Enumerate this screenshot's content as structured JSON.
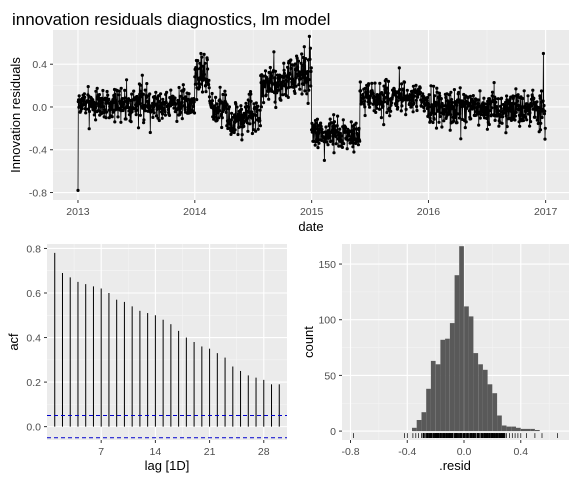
{
  "title": "innovation residuals diagnostics, lm model",
  "colors": {
    "panel_background": "#ebebeb",
    "grid_major": "#ffffff",
    "grid_minor": "#f5f5f5",
    "line_points": "#000000",
    "bars": "#595959",
    "ci_lines": "#0000cc"
  },
  "chart_data": [
    {
      "type": "line",
      "id": "residuals_time",
      "markers": true,
      "xlabel": "date",
      "ylabel": "Innovation residuals",
      "xlim": [
        "2012-10-15",
        "2017-03-15"
      ],
      "ylim": [
        -0.87,
        0.72
      ],
      "x_ticks": [
        "2013",
        "2014",
        "2015",
        "2016",
        "2017"
      ],
      "y_ticks": [
        -0.8,
        -0.4,
        0.0,
        0.4
      ],
      "y_tick_labels": [
        "-0.8",
        "-0.4",
        "0.0",
        "0.4"
      ],
      "grid": true,
      "segments": [
        {
          "start": "2013-01-01",
          "end": "2013-12-31",
          "level": 0.03,
          "noise": 0.07
        },
        {
          "start": "2014-01-01",
          "end": "2014-02-15",
          "level": 0.3,
          "noise": 0.09
        },
        {
          "start": "2014-02-16",
          "end": "2014-04-10",
          "level": 0.02,
          "noise": 0.08
        },
        {
          "start": "2014-04-11",
          "end": "2014-06-15",
          "level": -0.12,
          "noise": 0.08
        },
        {
          "start": "2014-06-16",
          "end": "2014-07-25",
          "level": -0.05,
          "noise": 0.1
        },
        {
          "start": "2014-07-26",
          "end": "2014-10-15",
          "level": 0.22,
          "noise": 0.08
        },
        {
          "start": "2014-10-16",
          "end": "2014-12-31",
          "level": 0.3,
          "noise": 0.1
        },
        {
          "start": "2015-01-01",
          "end": "2015-05-31",
          "level": -0.25,
          "noise": 0.08
        },
        {
          "start": "2015-06-01",
          "end": "2015-12-31",
          "level": 0.08,
          "noise": 0.07
        },
        {
          "start": "2016-01-01",
          "end": "2016-12-31",
          "level": -0.02,
          "noise": 0.08
        }
      ],
      "highlights": [
        {
          "x": "2013-01-01",
          "y": -0.78
        },
        {
          "x": "2013-01-02",
          "y": 0.05
        },
        {
          "x": "2014-01-20",
          "y": 0.5
        },
        {
          "x": "2014-12-25",
          "y": 0.66
        },
        {
          "x": "2014-12-28",
          "y": 0.55
        },
        {
          "x": "2015-02-10",
          "y": -0.5
        },
        {
          "x": "2016-12-25",
          "y": 0.5
        },
        {
          "x": "2016-12-30",
          "y": -0.3
        }
      ]
    },
    {
      "type": "bar",
      "id": "acf",
      "xlabel": "lag [1D]",
      "ylabel": "acf",
      "lags": [
        1,
        2,
        3,
        4,
        5,
        6,
        7,
        8,
        9,
        10,
        11,
        12,
        13,
        14,
        15,
        16,
        17,
        18,
        19,
        20,
        21,
        22,
        23,
        24,
        25,
        26,
        27,
        28,
        29,
        30
      ],
      "values": [
        0.78,
        0.69,
        0.67,
        0.65,
        0.64,
        0.63,
        0.62,
        0.6,
        0.57,
        0.56,
        0.54,
        0.52,
        0.51,
        0.5,
        0.48,
        0.46,
        0.43,
        0.4,
        0.38,
        0.36,
        0.35,
        0.33,
        0.31,
        0.27,
        0.25,
        0.23,
        0.22,
        0.21,
        0.19,
        0.19
      ],
      "ci": 0.05,
      "xlim": [
        0,
        31
      ],
      "ylim": [
        -0.06,
        0.82
      ],
      "x_ticks": [
        7,
        14,
        21,
        28
      ],
      "y_ticks": [
        0.0,
        0.2,
        0.4,
        0.6,
        0.8
      ],
      "y_tick_labels": [
        "0.0",
        "0.2",
        "0.4",
        "0.6",
        "0.8"
      ],
      "grid": true
    },
    {
      "type": "bar",
      "id": "histogram",
      "xlabel": ".resid",
      "ylabel": "count",
      "bin_width": 0.0333,
      "bin_centers": [
        -0.35,
        -0.317,
        -0.283,
        -0.25,
        -0.217,
        -0.183,
        -0.15,
        -0.117,
        -0.083,
        -0.05,
        -0.017,
        0.017,
        0.05,
        0.083,
        0.117,
        0.15,
        0.183,
        0.217,
        0.25,
        0.283,
        0.317,
        0.35,
        0.383,
        0.417,
        0.45,
        0.483,
        0.517
      ],
      "counts": [
        3,
        10,
        17,
        38,
        63,
        60,
        82,
        83,
        97,
        140,
        166,
        112,
        103,
        70,
        60,
        55,
        42,
        34,
        14,
        5,
        4,
        4,
        3,
        2,
        2,
        2,
        1
      ],
      "xlim": [
        -0.86,
        0.74
      ],
      "ylim": [
        -8,
        168
      ],
      "x_ticks": [
        -0.8,
        -0.4,
        0.0,
        0.4
      ],
      "x_tick_labels": [
        "-0.8",
        "-0.4",
        "0.0",
        "0.4"
      ],
      "y_ticks": [
        0,
        50,
        100,
        150
      ],
      "rug_values": [
        -0.78,
        -0.42,
        -0.4,
        -0.36,
        -0.34,
        -0.32,
        -0.3,
        -0.28,
        -0.26,
        -0.24,
        -0.22,
        -0.2,
        -0.18,
        -0.16,
        -0.14,
        -0.12,
        -0.1,
        -0.08,
        -0.06,
        -0.04,
        -0.02,
        0.0,
        0.02,
        0.04,
        0.06,
        0.08,
        0.1,
        0.12,
        0.14,
        0.16,
        0.18,
        0.2,
        0.22,
        0.24,
        0.26,
        0.28,
        0.3,
        0.32,
        0.34,
        0.36,
        0.38,
        0.4,
        0.44,
        0.5,
        0.55,
        0.66
      ],
      "grid": true
    }
  ]
}
